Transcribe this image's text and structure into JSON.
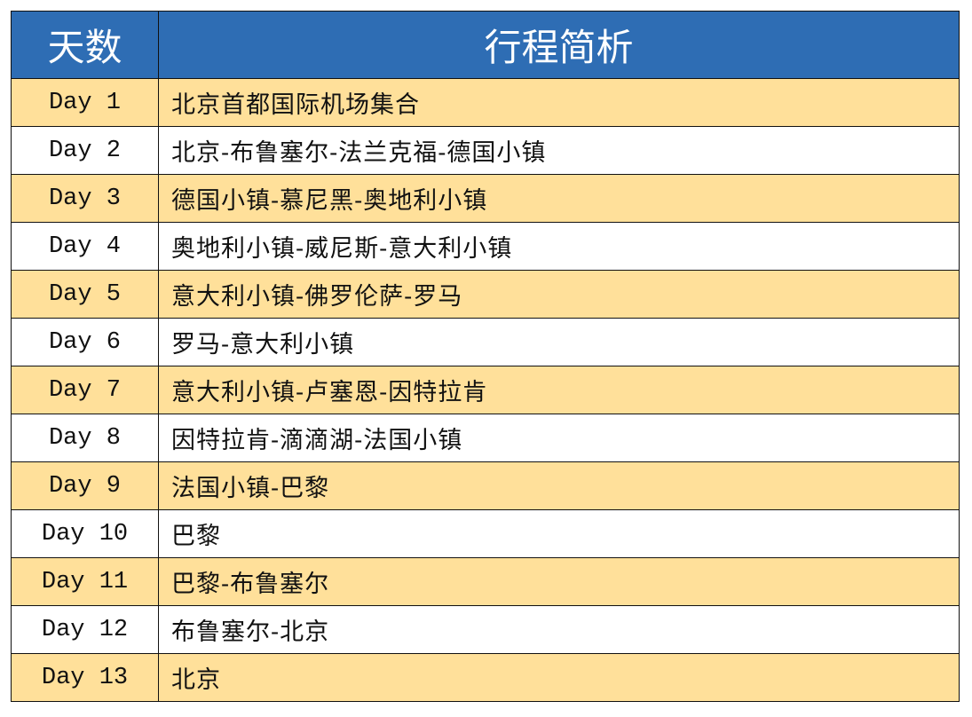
{
  "header": {
    "day_col": "天数",
    "route_col": "行程简析"
  },
  "colors": {
    "header_bg": "#2E6DB4",
    "stripe": "#FFE09A"
  },
  "rows": [
    {
      "day": "Day 1",
      "route": "北京首都国际机场集合"
    },
    {
      "day": "Day 2",
      "route": "北京-布鲁塞尔-法兰克福-德国小镇"
    },
    {
      "day": "Day 3",
      "route": "德国小镇-慕尼黑-奥地利小镇"
    },
    {
      "day": "Day 4",
      "route": "奥地利小镇-威尼斯-意大利小镇"
    },
    {
      "day": "Day 5",
      "route": "意大利小镇-佛罗伦萨-罗马"
    },
    {
      "day": "Day 6",
      "route": "罗马-意大利小镇"
    },
    {
      "day": "Day 7",
      "route": "意大利小镇-卢塞恩-因特拉肯"
    },
    {
      "day": "Day 8",
      "route": "因特拉肯-滴滴湖-法国小镇"
    },
    {
      "day": "Day 9",
      "route": "法国小镇-巴黎"
    },
    {
      "day": "Day 10",
      "route": "巴黎"
    },
    {
      "day": "Day 11",
      "route": "巴黎-布鲁塞尔"
    },
    {
      "day": "Day 12",
      "route": "布鲁塞尔-北京"
    },
    {
      "day": "Day 13",
      "route": "北京"
    }
  ]
}
